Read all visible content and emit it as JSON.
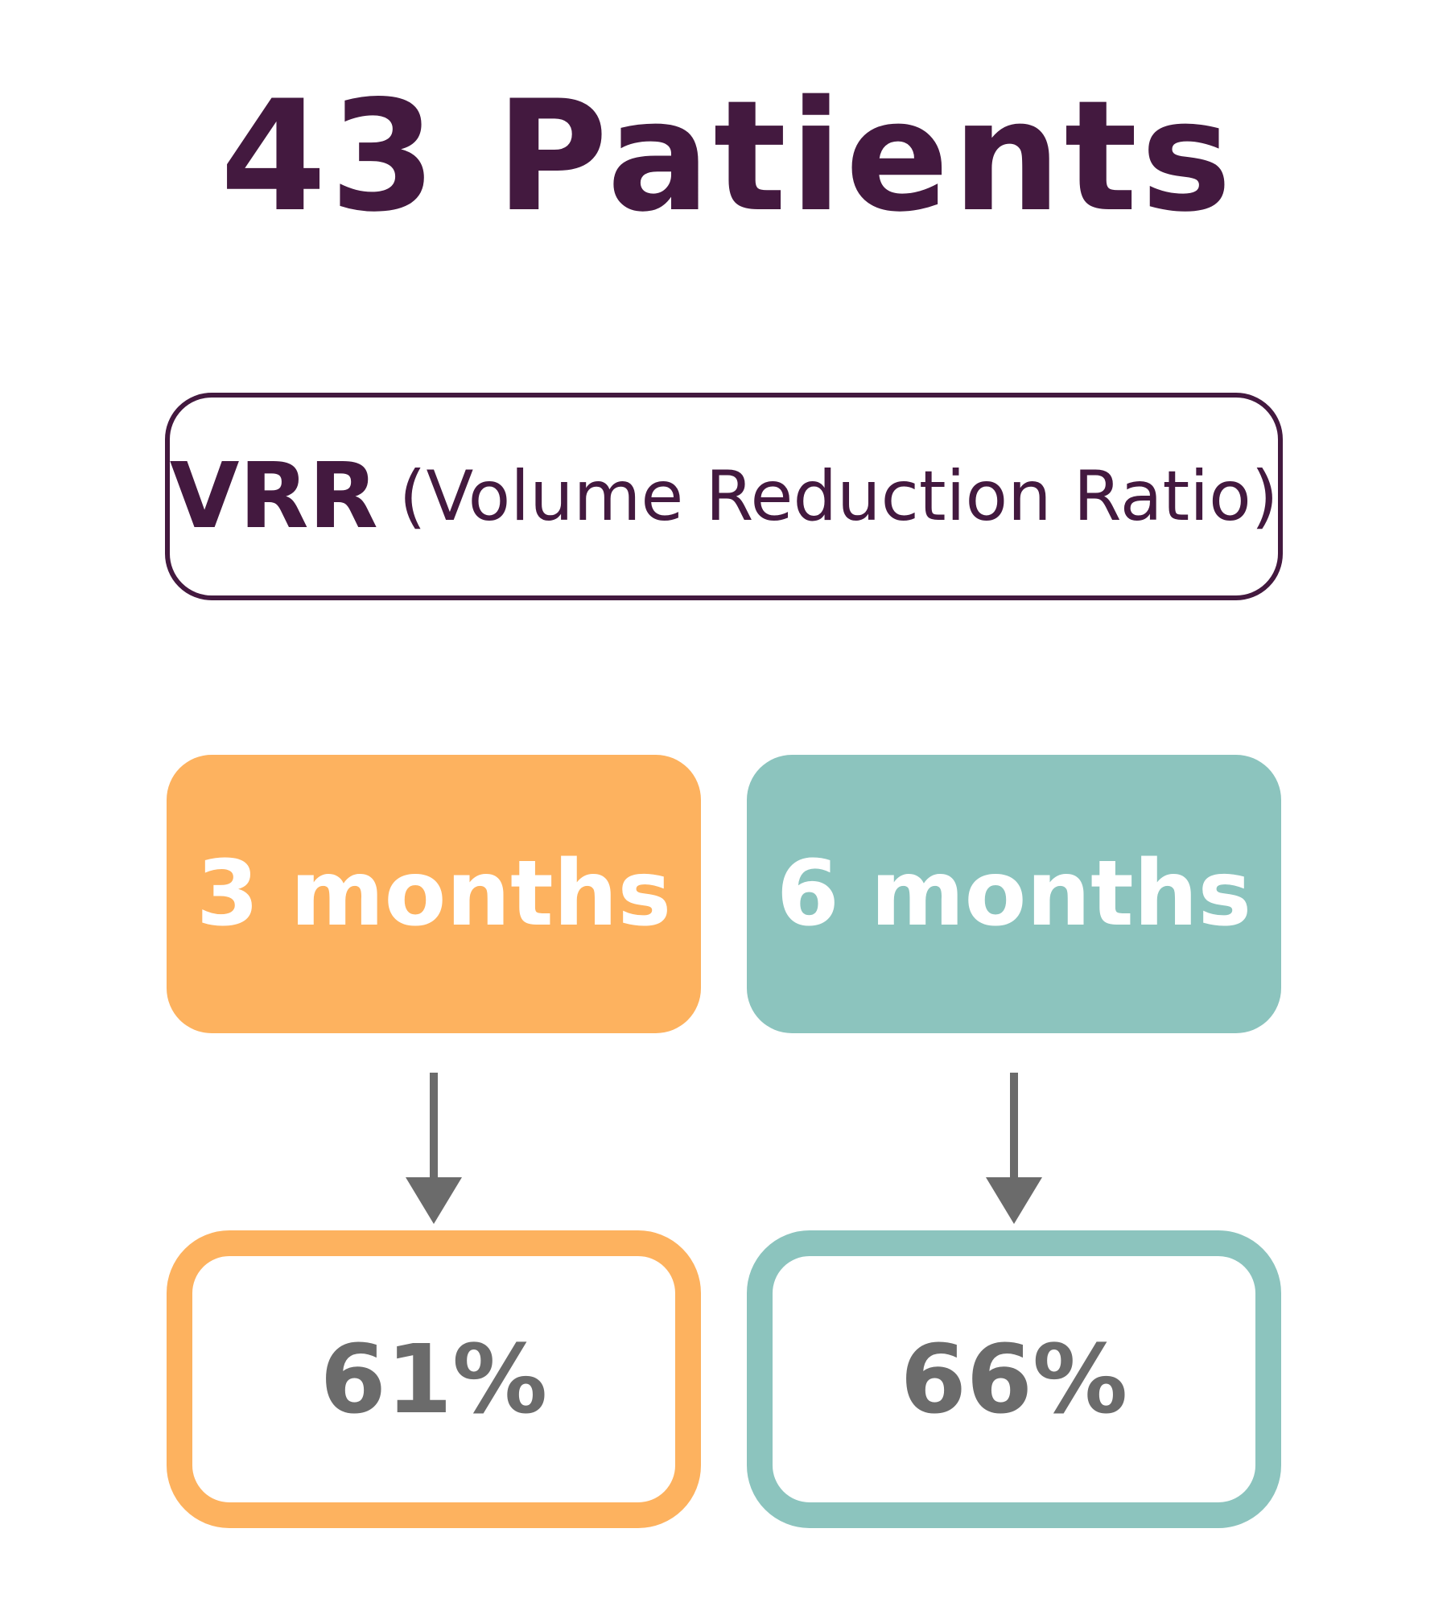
{
  "title": "43 Patients",
  "vrr": {
    "abbreviation": "VRR",
    "full_name": "(Volume Reduction Ratio)"
  },
  "colors": {
    "primary_text": "#43193f",
    "three_month": "#fdb25f",
    "six_month": "#8cc4be",
    "arrow": "#6b6b6b",
    "result_text": "#6b6b6b"
  },
  "timepoints": [
    {
      "label": "3 months",
      "result": "61%"
    },
    {
      "label": "6 months",
      "result": "66%"
    }
  ]
}
